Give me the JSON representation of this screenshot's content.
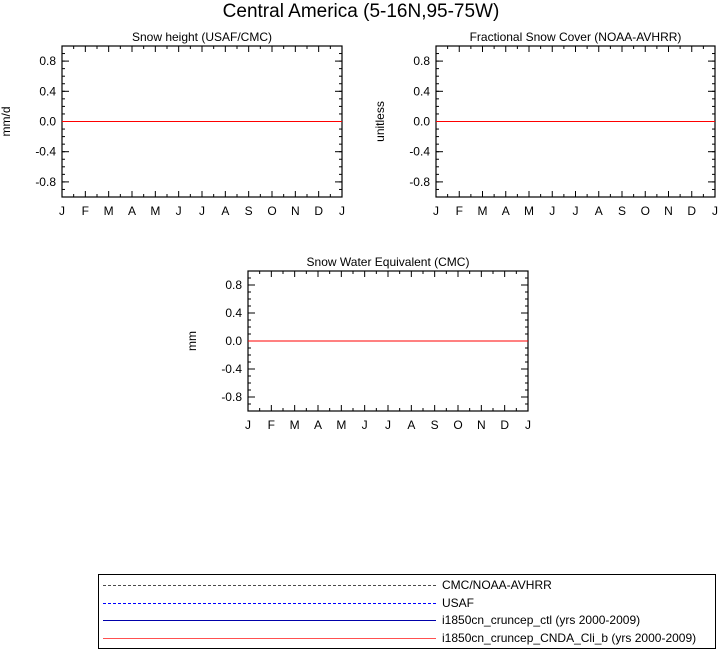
{
  "page_title": "Central America (5-16N,95-75W)",
  "chart_data": [
    {
      "type": "line",
      "title": "Snow height (USAF/CMC)",
      "xlabel": "",
      "ylabel": "mm/d",
      "x_tick_labels": [
        "J",
        "F",
        "M",
        "A",
        "M",
        "J",
        "J",
        "A",
        "S",
        "O",
        "N",
        "D",
        "J"
      ],
      "y_tick_labels": [
        "0.8",
        "0.4",
        "0.0",
        "-0.4",
        "-0.8"
      ],
      "y_ticks": [
        0.8,
        0.4,
        0.0,
        -0.4,
        -0.8
      ],
      "ylim": [
        -1.0,
        1.0
      ],
      "xlim": [
        0,
        12
      ],
      "grid": false,
      "series": [
        {
          "name": "CMC/NOAA-AVHRR",
          "color": "#000000",
          "dashed": true,
          "values": [
            0,
            0,
            0,
            0,
            0,
            0,
            0,
            0,
            0,
            0,
            0,
            0,
            0
          ]
        },
        {
          "name": "USAF",
          "color": "#0000ff",
          "dashed": true,
          "values": [
            0,
            0,
            0,
            0,
            0,
            0,
            0,
            0,
            0,
            0,
            0,
            0,
            0
          ]
        },
        {
          "name": "i1850cn_cruncep_ctl (yrs 2000-2009)",
          "color": "#0000ff",
          "dashed": false,
          "values": [
            0,
            0,
            0,
            0,
            0,
            0,
            0,
            0,
            0,
            0,
            0,
            0,
            0
          ]
        },
        {
          "name": "i1850cn_cruncep_CNDA_Cli_b (yrs 2000-2009)",
          "color": "#ff0000",
          "dashed": false,
          "values": [
            0,
            0,
            0,
            0,
            0,
            0,
            0,
            0,
            0,
            0,
            0,
            0,
            0
          ]
        }
      ]
    },
    {
      "type": "line",
      "title": "Fractional Snow Cover (NOAA-AVHRR)",
      "xlabel": "",
      "ylabel": "unitless",
      "x_tick_labels": [
        "J",
        "F",
        "M",
        "A",
        "M",
        "J",
        "J",
        "A",
        "S",
        "O",
        "N",
        "D",
        "J"
      ],
      "y_tick_labels": [
        "0.8",
        "0.4",
        "0.0",
        "-0.4",
        "-0.8"
      ],
      "y_ticks": [
        0.8,
        0.4,
        0.0,
        -0.4,
        -0.8
      ],
      "ylim": [
        -1.0,
        1.0
      ],
      "xlim": [
        0,
        12
      ],
      "grid": false,
      "series": [
        {
          "name": "CMC/NOAA-AVHRR",
          "color": "#000000",
          "dashed": true,
          "values": [
            0,
            0,
            0,
            0,
            0,
            0,
            0,
            0,
            0,
            0,
            0,
            0,
            0
          ]
        },
        {
          "name": "i1850cn_cruncep_ctl (yrs 2000-2009)",
          "color": "#0000ff",
          "dashed": false,
          "values": [
            0,
            0,
            0,
            0,
            0,
            0,
            0,
            0,
            0,
            0,
            0,
            0,
            0
          ]
        },
        {
          "name": "i1850cn_cruncep_CNDA_Cli_b (yrs 2000-2009)",
          "color": "#ff0000",
          "dashed": false,
          "values": [
            0,
            0,
            0,
            0,
            0,
            0,
            0,
            0,
            0,
            0,
            0,
            0,
            0
          ]
        }
      ]
    },
    {
      "type": "line",
      "title": "Snow Water Equivalent (CMC)",
      "xlabel": "",
      "ylabel": "mm",
      "x_tick_labels": [
        "J",
        "F",
        "M",
        "A",
        "M",
        "J",
        "J",
        "A",
        "S",
        "O",
        "N",
        "D",
        "J"
      ],
      "y_tick_labels": [
        "0.8",
        "0.4",
        "0.0",
        "-0.4",
        "-0.8"
      ],
      "y_ticks": [
        0.8,
        0.4,
        0.0,
        -0.4,
        -0.8
      ],
      "ylim": [
        -1.0,
        1.0
      ],
      "xlim": [
        0,
        12
      ],
      "grid": false,
      "series": [
        {
          "name": "CMC/NOAA-AVHRR",
          "color": "#000000",
          "dashed": true,
          "values": [
            0,
            0,
            0,
            0,
            0,
            0,
            0,
            0,
            0,
            0,
            0,
            0,
            0
          ]
        },
        {
          "name": "i1850cn_cruncep_ctl (yrs 2000-2009)",
          "color": "#0000ff",
          "dashed": false,
          "values": [
            0,
            0,
            0,
            0,
            0,
            0,
            0,
            0,
            0,
            0,
            0,
            0,
            0
          ]
        },
        {
          "name": "i1850cn_cruncep_CNDA_Cli_b (yrs 2000-2009)",
          "color": "#ff0000",
          "dashed": false,
          "values": [
            0,
            0,
            0,
            0,
            0,
            0,
            0,
            0,
            0,
            0,
            0,
            0,
            0
          ]
        }
      ]
    }
  ],
  "legend": {
    "items": [
      {
        "label": "CMC/NOAA-AVHRR",
        "color": "#4a4a4a",
        "dashed": true
      },
      {
        "label": "USAF",
        "color": "#0000ff",
        "dashed": true
      },
      {
        "label": "i1850cn_cruncep_ctl (yrs 2000-2009)",
        "color": "#0000aa",
        "dashed": false
      },
      {
        "label": "i1850cn_cruncep_CNDA_Cli_b (yrs 2000-2009)",
        "color": "#ff5050",
        "dashed": false
      }
    ]
  }
}
